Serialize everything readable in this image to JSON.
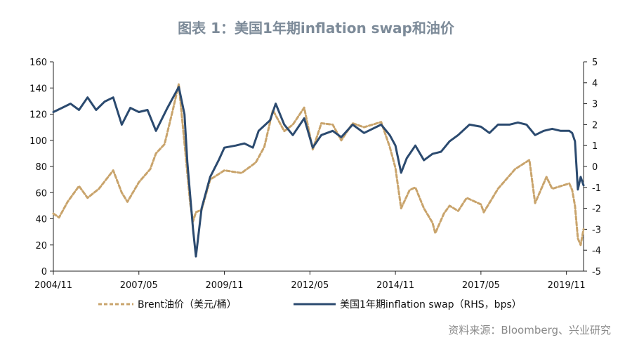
{
  "title": "图表 1：美国1年期inflation swap和油价",
  "source": "资料来源：Bloomberg、兴业研究",
  "chart_data": {
    "type": "line",
    "x_tick_labels": [
      "2004/11",
      "2007/05",
      "2009/11",
      "2012/05",
      "2014/11",
      "2017/05",
      "2019/11"
    ],
    "x_range": [
      "2004/11",
      "2020/05"
    ],
    "left_axis": {
      "range": [
        0,
        160
      ],
      "ticks": [
        0,
        20,
        40,
        60,
        80,
        100,
        120,
        140,
        160
      ]
    },
    "right_axis": {
      "range": [
        -5,
        5
      ],
      "ticks": [
        5,
        4,
        3,
        2,
        1,
        0,
        -1,
        -2,
        -3,
        -4,
        -5
      ]
    },
    "series": [
      {
        "name": "Brent油价（美元/桶）",
        "axis": "left",
        "style": "dashed",
        "color": "#c9a46c",
        "points": [
          [
            "2004/11",
            44
          ],
          [
            "2005/01",
            41
          ],
          [
            "2005/04",
            53
          ],
          [
            "2005/08",
            65
          ],
          [
            "2005/11",
            56
          ],
          [
            "2006/03",
            63
          ],
          [
            "2006/08",
            77
          ],
          [
            "2006/11",
            60
          ],
          [
            "2007/01",
            53
          ],
          [
            "2007/05",
            68
          ],
          [
            "2007/09",
            78
          ],
          [
            "2007/11",
            90
          ],
          [
            "2008/02",
            97
          ],
          [
            "2008/05",
            124
          ],
          [
            "2008/07",
            143
          ],
          [
            "2008/09",
            98
          ],
          [
            "2008/11",
            52
          ],
          [
            "2008/12",
            38
          ],
          [
            "2009/01",
            45
          ],
          [
            "2009/03",
            47
          ],
          [
            "2009/06",
            70
          ],
          [
            "2009/11",
            77
          ],
          [
            "2010/05",
            75
          ],
          [
            "2010/10",
            83
          ],
          [
            "2011/01",
            95
          ],
          [
            "2011/04",
            123
          ],
          [
            "2011/08",
            107
          ],
          [
            "2011/11",
            112
          ],
          [
            "2012/03",
            125
          ],
          [
            "2012/06",
            93
          ],
          [
            "2012/09",
            113
          ],
          [
            "2013/01",
            112
          ],
          [
            "2013/04",
            100
          ],
          [
            "2013/08",
            113
          ],
          [
            "2013/12",
            110
          ],
          [
            "2014/06",
            114
          ],
          [
            "2014/09",
            95
          ],
          [
            "2014/11",
            79
          ],
          [
            "2015/01",
            48
          ],
          [
            "2015/04",
            62
          ],
          [
            "2015/06",
            64
          ],
          [
            "2015/09",
            48
          ],
          [
            "2015/12",
            37
          ],
          [
            "2016/01",
            29
          ],
          [
            "2016/04",
            44
          ],
          [
            "2016/06",
            50
          ],
          [
            "2016/09",
            46
          ],
          [
            "2016/12",
            56
          ],
          [
            "2017/05",
            51
          ],
          [
            "2017/06",
            45
          ],
          [
            "2017/11",
            63
          ],
          [
            "2018/05",
            78
          ],
          [
            "2018/10",
            85
          ],
          [
            "2018/12",
            52
          ],
          [
            "2019/04",
            72
          ],
          [
            "2019/06",
            63
          ],
          [
            "2019/09",
            65
          ],
          [
            "2019/12",
            67
          ],
          [
            "2020/01",
            62
          ],
          [
            "2020/02",
            50
          ],
          [
            "2020/03",
            25
          ],
          [
            "2020/04",
            20
          ],
          [
            "2020/05",
            32
          ]
        ]
      },
      {
        "name": "美国1年期inflation swap（RHS，bps）",
        "axis": "right",
        "style": "solid",
        "color": "#2b4a6f",
        "points": [
          [
            "2004/11",
            2.6
          ],
          [
            "2005/02",
            2.8
          ],
          [
            "2005/05",
            3.0
          ],
          [
            "2005/08",
            2.7
          ],
          [
            "2005/11",
            3.3
          ],
          [
            "2006/02",
            2.7
          ],
          [
            "2006/05",
            3.1
          ],
          [
            "2006/08",
            3.3
          ],
          [
            "2006/11",
            2.0
          ],
          [
            "2007/02",
            2.8
          ],
          [
            "2007/05",
            2.6
          ],
          [
            "2007/08",
            2.7
          ],
          [
            "2007/11",
            1.7
          ],
          [
            "2008/03",
            2.8
          ],
          [
            "2008/07",
            3.8
          ],
          [
            "2008/09",
            2.5
          ],
          [
            "2008/10",
            0.2
          ],
          [
            "2008/12",
            -3.0
          ],
          [
            "2009/01",
            -4.3
          ],
          [
            "2009/03",
            -2.0
          ],
          [
            "2009/06",
            -0.5
          ],
          [
            "2009/09",
            0.3
          ],
          [
            "2009/11",
            0.9
          ],
          [
            "2010/03",
            1.0
          ],
          [
            "2010/06",
            1.1
          ],
          [
            "2010/09",
            0.9
          ],
          [
            "2010/11",
            1.7
          ],
          [
            "2011/03",
            2.2
          ],
          [
            "2011/05",
            3.0
          ],
          [
            "2011/08",
            2.0
          ],
          [
            "2011/11",
            1.5
          ],
          [
            "2012/03",
            2.3
          ],
          [
            "2012/06",
            0.9
          ],
          [
            "2012/09",
            1.5
          ],
          [
            "2013/01",
            1.7
          ],
          [
            "2013/04",
            1.4
          ],
          [
            "2013/08",
            2.0
          ],
          [
            "2013/12",
            1.6
          ],
          [
            "2014/06",
            2.0
          ],
          [
            "2014/09",
            1.5
          ],
          [
            "2014/11",
            1.0
          ],
          [
            "2015/01",
            -0.3
          ],
          [
            "2015/03",
            0.4
          ],
          [
            "2015/06",
            1.0
          ],
          [
            "2015/09",
            0.3
          ],
          [
            "2015/12",
            0.6
          ],
          [
            "2016/03",
            0.7
          ],
          [
            "2016/06",
            1.2
          ],
          [
            "2016/09",
            1.5
          ],
          [
            "2017/01",
            2.0
          ],
          [
            "2017/05",
            1.9
          ],
          [
            "2017/08",
            1.6
          ],
          [
            "2017/11",
            2.0
          ],
          [
            "2018/03",
            2.0
          ],
          [
            "2018/06",
            2.1
          ],
          [
            "2018/09",
            2.0
          ],
          [
            "2018/12",
            1.5
          ],
          [
            "2019/03",
            1.7
          ],
          [
            "2019/06",
            1.8
          ],
          [
            "2019/09",
            1.7
          ],
          [
            "2019/12",
            1.7
          ],
          [
            "2020/01",
            1.6
          ],
          [
            "2020/02",
            1.2
          ],
          [
            "2020/03",
            -1.1
          ],
          [
            "2020/04",
            -0.5
          ],
          [
            "2020/05",
            -0.9
          ]
        ]
      }
    ],
    "legend_placement": "bottom",
    "grid": false
  }
}
